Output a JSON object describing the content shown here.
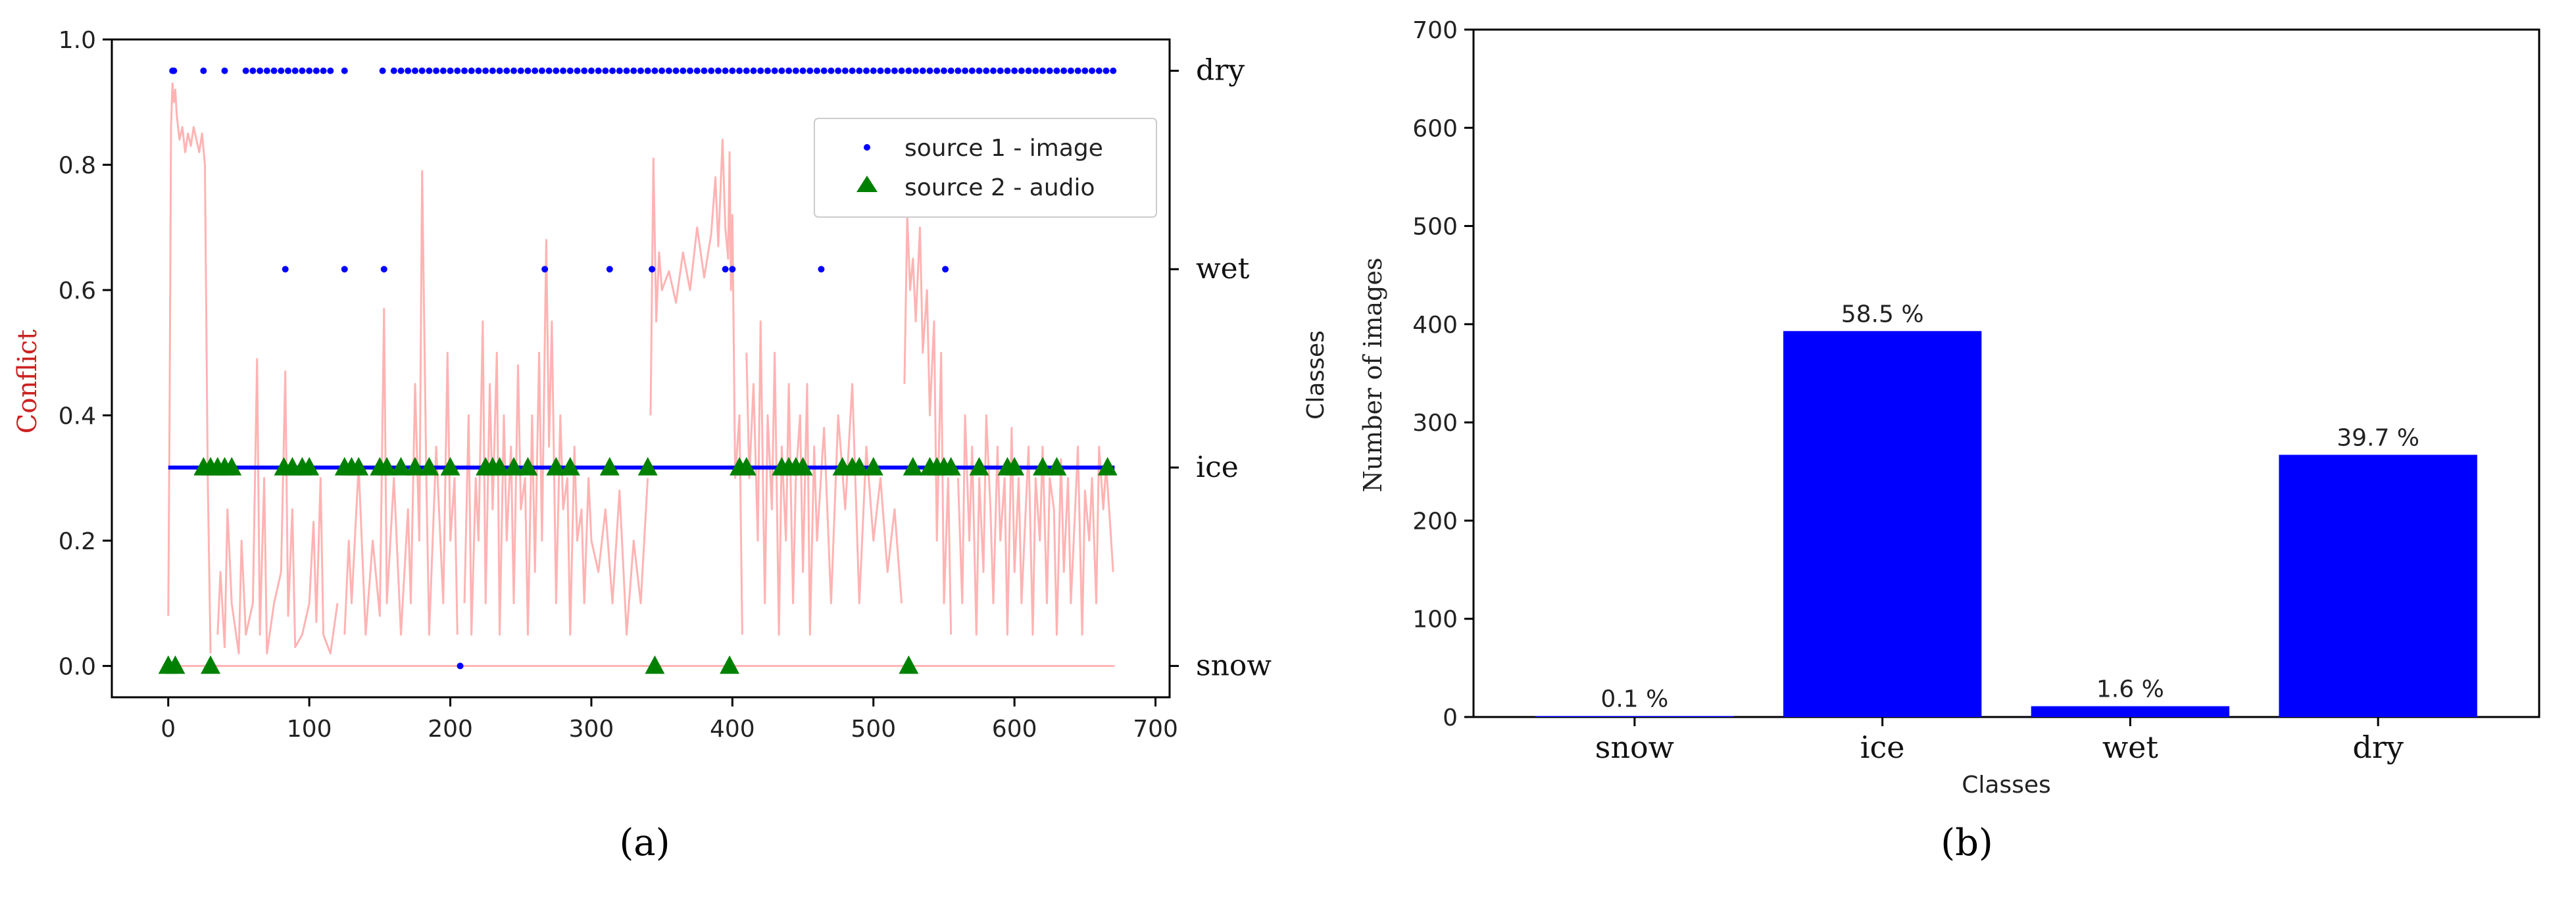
{
  "chart_data": [
    {
      "panel_label": "a",
      "type": "line+scatter",
      "ylabel": "Conflict",
      "right_axis": {
        "ticks": [
          "snow",
          "ice",
          "wet",
          "dry"
        ]
      },
      "xlim": [
        -40,
        710
      ],
      "ylim": [
        -0.05,
        1.0
      ],
      "x_ticks": [
        0,
        100,
        200,
        300,
        400,
        500,
        600,
        700
      ],
      "y_ticks": [
        "0.0",
        "0.2",
        "0.4",
        "0.6",
        "0.8",
        "1.0"
      ],
      "legend": {
        "placement": "top-right",
        "entries": [
          "source 1 - image",
          "source 2 - audio"
        ]
      },
      "colors": {
        "conflict": "#ffb3b3",
        "image": "#0000ff",
        "audio": "#008000"
      },
      "class_levels": {
        "snow": 0.0,
        "ice": 0.3167,
        "wet": 0.6333,
        "dry": 0.95
      },
      "conflict_series": {
        "name": "Conflict",
        "segments": [
          {
            "x": [
              0,
              671
            ],
            "y": [
              0.0,
              0.0
            ]
          },
          {
            "x": [
              0,
              1,
              2,
              3,
              4,
              5,
              6,
              8,
              10,
              12,
              14,
              16,
              18,
              20,
              22,
              24,
              26,
              28,
              30
            ],
            "y": [
              0.08,
              0.42,
              0.86,
              0.93,
              0.9,
              0.92,
              0.88,
              0.84,
              0.86,
              0.82,
              0.85,
              0.83,
              0.86,
              0.84,
              0.82,
              0.85,
              0.8,
              0.3,
              0.02
            ]
          },
          {
            "x": [
              35,
              37,
              40,
              42,
              45,
              50,
              52,
              55,
              60,
              63,
              65,
              68,
              70,
              75,
              80,
              83,
              85,
              88,
              90,
              95,
              100,
              103,
              105,
              108,
              110,
              115,
              120
            ],
            "y": [
              0.05,
              0.15,
              0.03,
              0.25,
              0.1,
              0.02,
              0.2,
              0.05,
              0.1,
              0.49,
              0.05,
              0.3,
              0.02,
              0.1,
              0.15,
              0.47,
              0.08,
              0.25,
              0.03,
              0.05,
              0.1,
              0.23,
              0.07,
              0.3,
              0.05,
              0.02,
              0.1
            ]
          },
          {
            "x": [
              125,
              128,
              130,
              135,
              140,
              145,
              150,
              153,
              155,
              160,
              165,
              170,
              172,
              175,
              178,
              180,
              183,
              185,
              190,
              195,
              198,
              200,
              203,
              205
            ],
            "y": [
              0.05,
              0.2,
              0.1,
              0.32,
              0.05,
              0.2,
              0.08,
              0.57,
              0.1,
              0.3,
              0.05,
              0.25,
              0.1,
              0.45,
              0.2,
              0.79,
              0.3,
              0.05,
              0.35,
              0.1,
              0.5,
              0.2,
              0.3,
              0.05
            ]
          },
          {
            "x": [
              210,
              213,
              215,
              218,
              220,
              223,
              225,
              228,
              230,
              233,
              235,
              238,
              240,
              243,
              245,
              248,
              250,
              253,
              255,
              258,
              260,
              263,
              265,
              268,
              270,
              272,
              275,
              278,
              280,
              283,
              285,
              288,
              290,
              293,
              295,
              298,
              300,
              305,
              310,
              315,
              320,
              325,
              330,
              335,
              340
            ],
            "y": [
              0.1,
              0.4,
              0.05,
              0.3,
              0.2,
              0.55,
              0.1,
              0.45,
              0.25,
              0.5,
              0.05,
              0.4,
              0.2,
              0.35,
              0.1,
              0.48,
              0.25,
              0.3,
              0.05,
              0.4,
              0.15,
              0.5,
              0.2,
              0.68,
              0.35,
              0.55,
              0.1,
              0.4,
              0.25,
              0.3,
              0.05,
              0.35,
              0.2,
              0.25,
              0.1,
              0.3,
              0.2,
              0.15,
              0.25,
              0.1,
              0.28,
              0.05,
              0.2,
              0.1,
              0.3
            ]
          },
          {
            "x": [
              342,
              344,
              346,
              348,
              350,
              355,
              360,
              365,
              370,
              375,
              380,
              385,
              388,
              390,
              393,
              395,
              397,
              398,
              399,
              400,
              402,
              405,
              407
            ],
            "y": [
              0.4,
              0.81,
              0.55,
              0.66,
              0.6,
              0.63,
              0.58,
              0.66,
              0.6,
              0.7,
              0.62,
              0.69,
              0.78,
              0.67,
              0.84,
              0.7,
              0.65,
              0.82,
              0.6,
              0.72,
              0.3,
              0.4,
              0.05
            ]
          },
          {
            "x": [
              410,
              412,
              415,
              418,
              420,
              423,
              425,
              428,
              430,
              433,
              435,
              438,
              440,
              443,
              445,
              448,
              450,
              453,
              455,
              458,
              460,
              465,
              470,
              475,
              480,
              485,
              490,
              495,
              500,
              505,
              510,
              515,
              520
            ],
            "y": [
              0.5,
              0.3,
              0.45,
              0.2,
              0.55,
              0.1,
              0.4,
              0.25,
              0.5,
              0.05,
              0.35,
              0.2,
              0.45,
              0.1,
              0.3,
              0.4,
              0.15,
              0.45,
              0.05,
              0.35,
              0.2,
              0.38,
              0.1,
              0.4,
              0.25,
              0.45,
              0.1,
              0.35,
              0.2,
              0.3,
              0.15,
              0.25,
              0.1
            ]
          },
          {
            "x": [
              522,
              524,
              526,
              528,
              530,
              533,
              535,
              538,
              540,
              543,
              545,
              548,
              550,
              553,
              555
            ],
            "y": [
              0.45,
              0.72,
              0.6,
              0.65,
              0.55,
              0.7,
              0.5,
              0.6,
              0.4,
              0.55,
              0.2,
              0.5,
              0.1,
              0.3,
              0.05
            ]
          },
          {
            "x": [
              560,
              563,
              565,
              568,
              570,
              573,
              575,
              578,
              580,
              583,
              585,
              588,
              590,
              593,
              595,
              598,
              600,
              603,
              605,
              608,
              610,
              613,
              615,
              618,
              620,
              623,
              625,
              628,
              630,
              633,
              635,
              638,
              640,
              643,
              645,
              648,
              650,
              653,
              655,
              658,
              660,
              663,
              665,
              668,
              670
            ],
            "y": [
              0.3,
              0.1,
              0.4,
              0.2,
              0.35,
              0.05,
              0.3,
              0.15,
              0.4,
              0.25,
              0.1,
              0.35,
              0.2,
              0.3,
              0.05,
              0.38,
              0.15,
              0.3,
              0.1,
              0.25,
              0.35,
              0.05,
              0.3,
              0.2,
              0.35,
              0.1,
              0.3,
              0.25,
              0.05,
              0.33,
              0.15,
              0.3,
              0.1,
              0.25,
              0.35,
              0.05,
              0.28,
              0.2,
              0.3,
              0.1,
              0.35,
              0.25,
              0.32,
              0.22,
              0.15
            ]
          }
        ]
      },
      "image_points": {
        "dry": [
          3,
          4,
          25,
          40,
          55,
          60,
          65,
          70,
          75,
          80,
          85,
          90,
          95,
          100,
          105,
          110,
          115,
          125,
          152,
          160,
          165,
          170,
          175,
          180,
          185,
          190,
          195,
          200,
          205,
          210,
          215,
          220,
          225,
          230,
          235,
          240,
          245,
          250,
          255,
          260,
          265,
          270,
          275,
          280,
          285,
          290,
          295,
          300,
          305,
          310,
          315,
          320,
          325,
          330,
          335,
          340,
          345,
          350,
          355,
          360,
          365,
          370,
          375,
          380,
          385,
          390,
          395,
          400,
          405,
          410,
          415,
          420,
          425,
          430,
          435,
          440,
          445,
          450,
          455,
          460,
          465,
          470,
          475,
          480,
          485,
          490,
          495,
          500,
          505,
          510,
          515,
          520,
          525,
          530,
          535,
          540,
          545,
          550,
          555,
          560,
          565,
          570,
          575,
          580,
          585,
          590,
          595,
          600,
          605,
          610,
          615,
          620,
          625,
          630,
          635,
          640,
          645,
          650,
          655,
          660,
          665,
          670
        ],
        "wet": [
          83,
          125,
          153,
          267,
          313,
          343,
          395,
          400,
          463,
          551
        ],
        "snow": [
          207
        ]
      },
      "audio_points": {
        "ice": [
          25,
          30,
          35,
          40,
          45,
          82,
          88,
          95,
          100,
          125,
          130,
          135,
          150,
          155,
          165,
          175,
          185,
          200,
          225,
          230,
          235,
          245,
          255,
          275,
          285,
          313,
          340,
          405,
          410,
          435,
          440,
          445,
          450,
          478,
          485,
          490,
          500,
          528,
          540,
          545,
          550,
          555,
          575,
          595,
          600,
          620,
          630,
          666
        ],
        "snow": [
          0,
          5,
          30,
          345,
          398,
          525
        ]
      }
    },
    {
      "panel_label": "b",
      "type": "bar",
      "categories": [
        "snow",
        "ice",
        "wet",
        "dry"
      ],
      "values": [
        1,
        393,
        11,
        267
      ],
      "data_labels": [
        "0.1 %",
        "58.5 %",
        "1.6 %",
        "39.7 %"
      ],
      "ylabel": "Number of images",
      "xlabel": "Classes",
      "ylim": [
        0,
        700
      ],
      "y_ticks": [
        0,
        100,
        200,
        300,
        400,
        500,
        600,
        700
      ],
      "bar_color": "#0000ff"
    }
  ],
  "panel_labels": {
    "a": "(a)",
    "b": "(b)"
  },
  "extra_labels": {
    "b_left_classes": "Classes"
  }
}
